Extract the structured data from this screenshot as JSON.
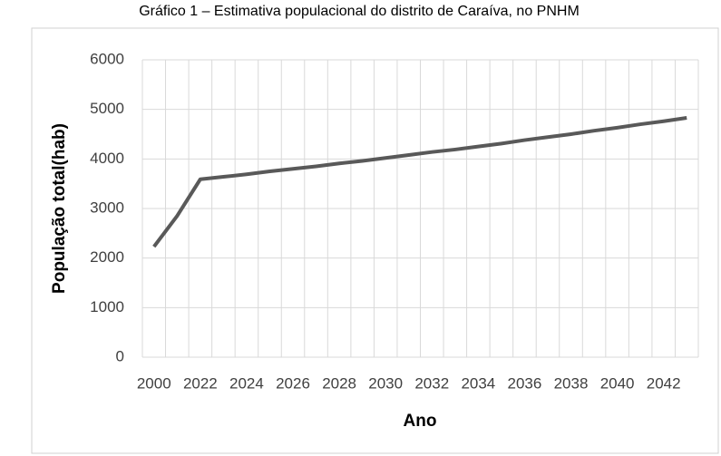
{
  "chart_data": {
    "type": "line",
    "title": "Gráfico 1 – Estimativa populacional do distrito de Caraíva, no PNHM",
    "xlabel": "Ano",
    "ylabel": "População total(hab)",
    "categories": [
      "2000",
      null,
      "2022",
      null,
      "2024",
      null,
      "2026",
      null,
      "2028",
      null,
      "2030",
      null,
      "2032",
      null,
      "2034",
      null,
      "2036",
      null,
      "2038",
      null,
      "2040",
      null,
      "2042",
      null
    ],
    "series": [
      {
        "name": "População total",
        "color": "#595959",
        "values": [
          2230,
          2850,
          3590,
          3640,
          3690,
          3750,
          3800,
          3850,
          3910,
          3960,
          4020,
          4080,
          4140,
          4190,
          4250,
          4310,
          4380,
          4440,
          4500,
          4570,
          4630,
          4700,
          4760,
          4830
        ]
      }
    ],
    "ylim": [
      0,
      6000
    ],
    "yticks": [
      0,
      1000,
      2000,
      3000,
      4000,
      5000,
      6000
    ],
    "grid": true
  }
}
